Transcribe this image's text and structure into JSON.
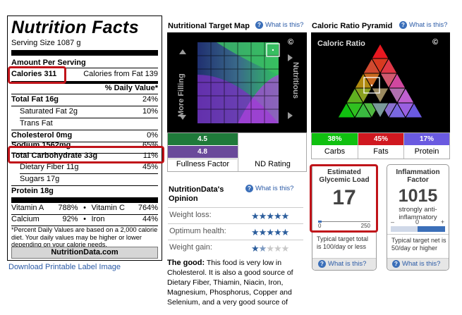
{
  "label": {
    "title": "Nutrition Facts",
    "serving": "Serving Size 1087 g",
    "amount_per_serving": "Amount Per Serving",
    "calories": "Calories 311",
    "calories_from_fat": "Calories from Fat 139",
    "daily_value_header": "% Daily Value*",
    "rows": [
      {
        "name": "Total Fat 16g",
        "dv": "24%"
      },
      {
        "name": "Saturated Fat 2g",
        "dv": "10%"
      },
      {
        "name": "Trans Fat",
        "dv": ""
      },
      {
        "name": "Cholesterol 0mg",
        "dv": "0%"
      },
      {
        "name": "Sodium 1562mg",
        "dv": "65%"
      },
      {
        "name": "Total Carbohydrate 33g",
        "dv": "11%"
      },
      {
        "name": "Dietary Fiber 11g",
        "dv": "45%"
      },
      {
        "name": "Sugars 17g",
        "dv": ""
      },
      {
        "name": "Protein 18g",
        "dv": ""
      }
    ],
    "vitamins": [
      {
        "a_name": "Vitamin A",
        "a_val": "788%",
        "b_name": "Vitamin C",
        "b_val": "764%"
      },
      {
        "a_name": "Calcium",
        "a_val": "92%",
        "b_name": "Iron",
        "b_val": "44%"
      }
    ],
    "bullet": "•",
    "footnote": "*Percent Daily Values are based on a 2,000 calorie diet. Your daily values may be higher or lower depending on your calorie needs.",
    "brand": "NutritionData.com",
    "download_link": "Download Printable Label Image"
  },
  "target_map": {
    "title": "Nutritional Target Map",
    "help": "What is this?",
    "more_filling": "More Filling",
    "nutritious": "Nutritious",
    "copyright": "©",
    "fullness_value": "4.5",
    "nd_value": "4.8",
    "fullness_label": "Fullness Factor",
    "nd_label": "ND Rating"
  },
  "pyramid": {
    "title": "Caloric Ratio Pyramid",
    "help": "What is this?",
    "inner_title": "Caloric Ratio",
    "copyright": "©",
    "carbs_pct": "38%",
    "fats_pct": "45%",
    "protein_pct": "17%",
    "carbs_label": "Carbs",
    "fats_label": "Fats",
    "protein_label": "Protein",
    "colors": {
      "carbs": "#10c010",
      "fats": "#d01820",
      "protein": "#6a5ae0"
    }
  },
  "opinion": {
    "title": "NutritionData's Opinion",
    "help": "What is this?",
    "items": [
      {
        "label": "Weight loss:",
        "stars": 5
      },
      {
        "label": "Optimum health:",
        "stars": 5
      },
      {
        "label": "Weight gain:",
        "stars": 1.5
      }
    ],
    "good_label": "The good:",
    "good_text": "This food is very low in Cholesterol. It is also a good source of Dietary Fiber, Thiamin, Niacin, Iron, Magnesium, Phosphorus, Copper and Selenium, and a very good source of"
  },
  "glycemic": {
    "title": "Estimated Glycemic Load",
    "value": "17",
    "scale_min": "0",
    "scale_max": "250",
    "level": 0.068,
    "note": "Typical target total is 100/day or less",
    "help": "What is this?"
  },
  "inflammation": {
    "title": "Inflammation Factor",
    "value": "1015",
    "desc": "strongly anti-inflammatory",
    "minus": "–",
    "zero": "0",
    "plus": "+",
    "note": "Typical target net is 50/day or higher",
    "help": "What is this?"
  }
}
